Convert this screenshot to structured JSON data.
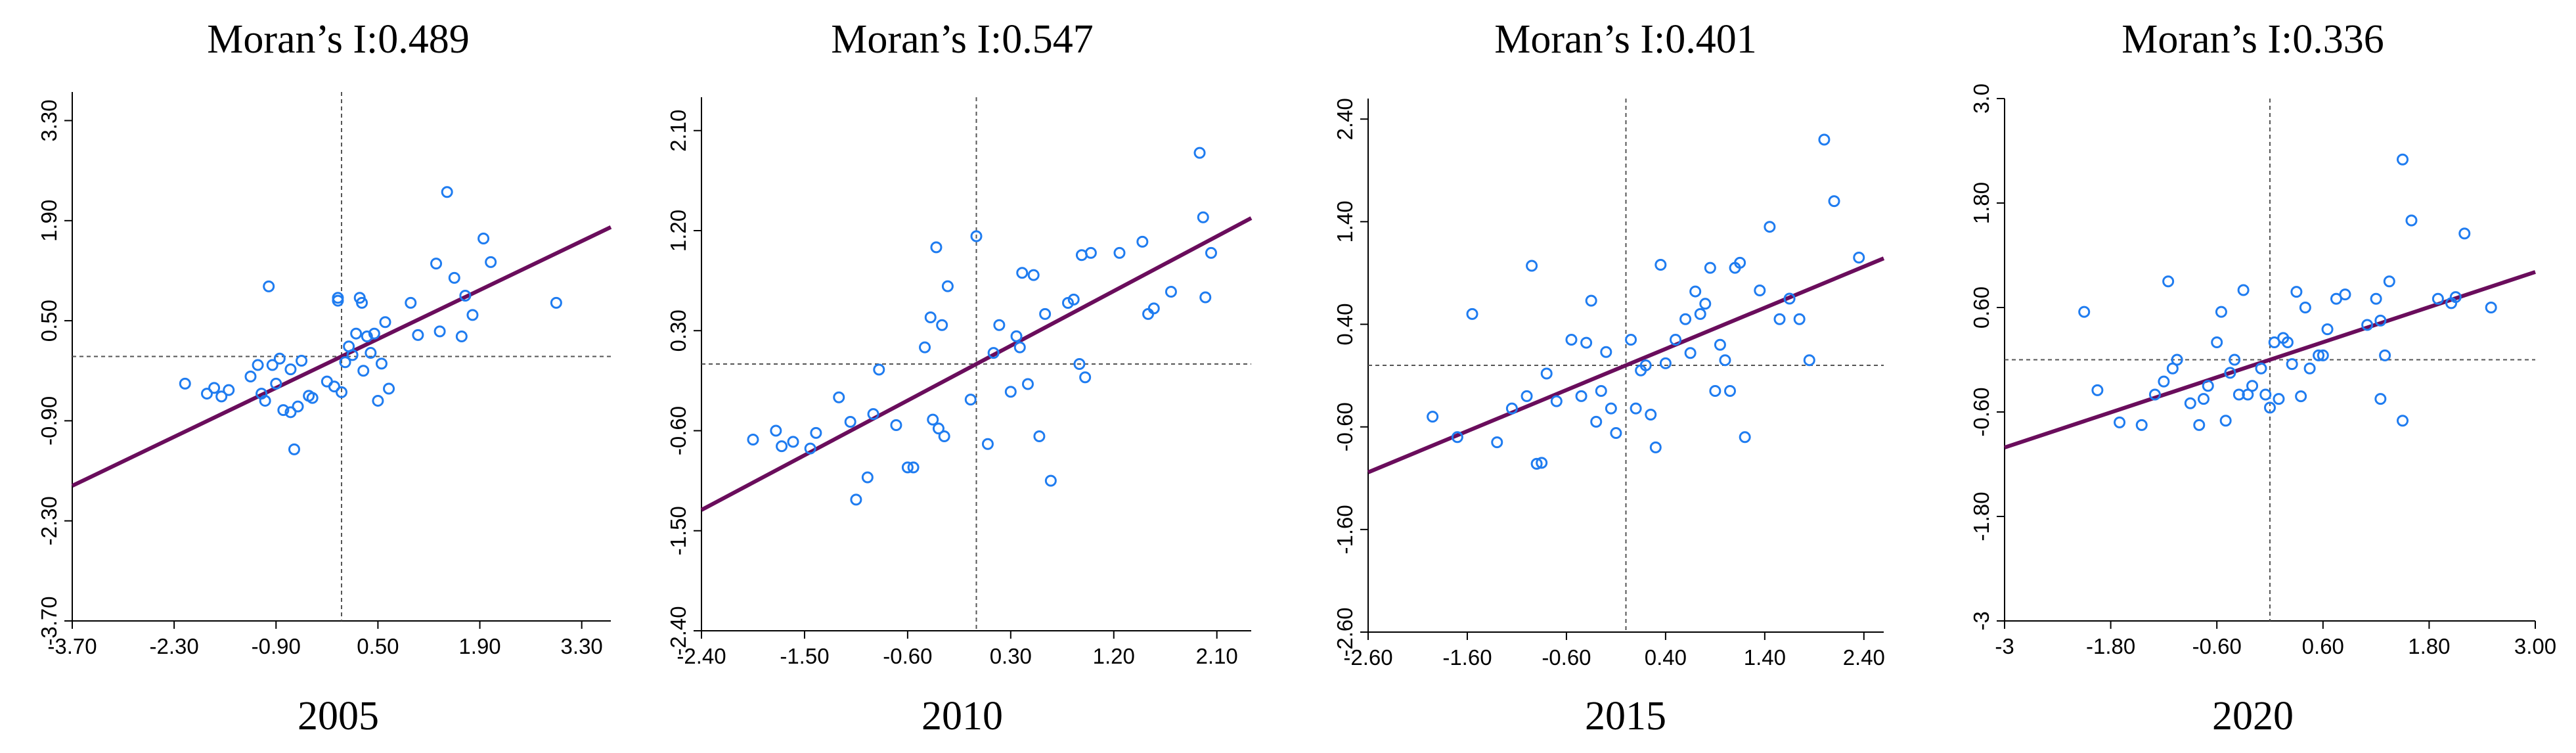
{
  "chart_data": [
    {
      "type": "scatter",
      "title": "Moran’s I:0.489",
      "year": "2005",
      "xlabel": "",
      "ylabel": "",
      "xlim": [
        -3.7,
        3.7
      ],
      "ylim": [
        -3.7,
        3.7
      ],
      "xticks": [
        "-3.70",
        "-2.30",
        "-0.90",
        "0.50",
        "1.90",
        "3.30"
      ],
      "yticks": [
        "-3.70",
        "-2.30",
        "-0.90",
        "0.50",
        "1.90",
        "3.30"
      ],
      "slope": 0.489,
      "points": [
        [
          -2.15,
          -0.38
        ],
        [
          -1.85,
          -0.52
        ],
        [
          -1.75,
          -0.44
        ],
        [
          -1.65,
          -0.56
        ],
        [
          -1.55,
          -0.47
        ],
        [
          -1.25,
          -0.28
        ],
        [
          -1.15,
          -0.12
        ],
        [
          -1.1,
          -0.52
        ],
        [
          -1.05,
          -0.62
        ],
        [
          -1.0,
          0.98
        ],
        [
          -0.95,
          -0.12
        ],
        [
          -0.9,
          -0.38
        ],
        [
          -0.85,
          -0.03
        ],
        [
          -0.8,
          -0.75
        ],
        [
          -0.7,
          -0.18
        ],
        [
          -0.7,
          -0.78
        ],
        [
          -0.65,
          -1.3
        ],
        [
          -0.6,
          -0.7
        ],
        [
          -0.55,
          -0.06
        ],
        [
          -0.45,
          -0.55
        ],
        [
          -0.4,
          -0.58
        ],
        [
          -0.2,
          -0.35
        ],
        [
          -0.1,
          -0.42
        ],
        [
          -0.05,
          0.82
        ],
        [
          -0.05,
          0.78
        ],
        [
          0.0,
          -0.5
        ],
        [
          0.05,
          -0.08
        ],
        [
          0.1,
          0.14
        ],
        [
          0.15,
          0.02
        ],
        [
          0.2,
          0.32
        ],
        [
          0.25,
          0.82
        ],
        [
          0.28,
          0.75
        ],
        [
          0.3,
          -0.2
        ],
        [
          0.35,
          0.28
        ],
        [
          0.4,
          0.05
        ],
        [
          0.45,
          0.32
        ],
        [
          0.5,
          -0.62
        ],
        [
          0.55,
          -0.1
        ],
        [
          0.6,
          0.48
        ],
        [
          0.65,
          -0.45
        ],
        [
          0.95,
          0.75
        ],
        [
          1.05,
          0.3
        ],
        [
          1.3,
          1.3
        ],
        [
          1.35,
          0.35
        ],
        [
          1.45,
          2.3
        ],
        [
          1.55,
          1.1
        ],
        [
          1.65,
          0.28
        ],
        [
          1.7,
          0.85
        ],
        [
          1.8,
          0.58
        ],
        [
          1.95,
          1.65
        ],
        [
          2.05,
          1.32
        ],
        [
          2.95,
          0.75
        ]
      ]
    },
    {
      "type": "scatter",
      "title": "Moran’s I:0.547",
      "year": "2010",
      "xlabel": "",
      "ylabel": "",
      "xlim": [
        -2.4,
        2.4
      ],
      "ylim": [
        -2.4,
        2.4
      ],
      "xticks": [
        "-2.40",
        "-1.50",
        "-0.60",
        "0.30",
        "1.20",
        "2.10"
      ],
      "yticks": [
        "-2.40",
        "-1.50",
        "-0.60",
        "0.30",
        "1.20",
        "2.10"
      ],
      "slope": 0.547,
      "points": [
        [
          -1.95,
          -0.68
        ],
        [
          -1.75,
          -0.6
        ],
        [
          -1.7,
          -0.74
        ],
        [
          -1.6,
          -0.7
        ],
        [
          -1.45,
          -0.76
        ],
        [
          -1.4,
          -0.62
        ],
        [
          -1.2,
          -0.3
        ],
        [
          -1.1,
          -0.52
        ],
        [
          -1.05,
          -1.22
        ],
        [
          -0.95,
          -1.02
        ],
        [
          -0.9,
          -0.45
        ],
        [
          -0.85,
          -0.05
        ],
        [
          -0.7,
          -0.55
        ],
        [
          -0.6,
          -0.93
        ],
        [
          -0.55,
          -0.93
        ],
        [
          -0.45,
          0.15
        ],
        [
          -0.4,
          0.42
        ],
        [
          -0.38,
          -0.5
        ],
        [
          -0.35,
          1.05
        ],
        [
          -0.33,
          -0.58
        ],
        [
          -0.3,
          0.35
        ],
        [
          -0.28,
          -0.65
        ],
        [
          -0.25,
          0.7
        ],
        [
          -0.05,
          -0.32
        ],
        [
          0.0,
          1.15
        ],
        [
          0.1,
          -0.72
        ],
        [
          0.15,
          0.1
        ],
        [
          0.2,
          0.35
        ],
        [
          0.3,
          -0.25
        ],
        [
          0.35,
          0.25
        ],
        [
          0.38,
          0.15
        ],
        [
          0.4,
          0.82
        ],
        [
          0.45,
          -0.18
        ],
        [
          0.5,
          0.8
        ],
        [
          0.55,
          -0.65
        ],
        [
          0.6,
          0.45
        ],
        [
          0.65,
          -1.05
        ],
        [
          0.8,
          0.55
        ],
        [
          0.85,
          0.58
        ],
        [
          0.9,
          0.0
        ],
        [
          0.92,
          0.98
        ],
        [
          0.95,
          -0.12
        ],
        [
          1.0,
          1.0
        ],
        [
          1.25,
          1.0
        ],
        [
          1.45,
          1.1
        ],
        [
          1.5,
          0.45
        ],
        [
          1.55,
          0.5
        ],
        [
          1.7,
          0.65
        ],
        [
          1.95,
          1.9
        ],
        [
          1.98,
          1.32
        ],
        [
          2.0,
          0.6
        ],
        [
          2.05,
          1.0
        ]
      ]
    },
    {
      "type": "scatter",
      "title": "Moran’s I:0.401",
      "year": "2015",
      "xlabel": "",
      "ylabel": "",
      "xlim": [
        -2.6,
        2.6
      ],
      "ylim": [
        -2.6,
        2.6
      ],
      "xticks": [
        "-2.60",
        "-1.60",
        "-0.60",
        "0.40",
        "1.40",
        "2.40"
      ],
      "yticks": [
        "-2.60",
        "-1.60",
        "-0.60",
        "0.40",
        "1.40",
        "2.40"
      ],
      "slope": 0.401,
      "points": [
        [
          -1.95,
          -0.5
        ],
        [
          -1.7,
          -0.7
        ],
        [
          -1.55,
          0.5
        ],
        [
          -1.3,
          -0.75
        ],
        [
          -1.15,
          -0.42
        ],
        [
          -1.0,
          -0.3
        ],
        [
          -0.95,
          0.97
        ],
        [
          -0.9,
          -0.96
        ],
        [
          -0.85,
          -0.95
        ],
        [
          -0.8,
          -0.08
        ],
        [
          -0.7,
          -0.35
        ],
        [
          -0.55,
          0.25
        ],
        [
          -0.45,
          -0.3
        ],
        [
          -0.4,
          0.22
        ],
        [
          -0.35,
          0.63
        ],
        [
          -0.3,
          -0.55
        ],
        [
          -0.25,
          -0.25
        ],
        [
          -0.2,
          0.13
        ],
        [
          -0.15,
          -0.42
        ],
        [
          -0.1,
          -0.66
        ],
        [
          0.05,
          0.25
        ],
        [
          0.1,
          -0.42
        ],
        [
          0.15,
          -0.05
        ],
        [
          0.2,
          0.0
        ],
        [
          0.25,
          -0.48
        ],
        [
          0.3,
          -0.8
        ],
        [
          0.35,
          0.98
        ],
        [
          0.4,
          0.02
        ],
        [
          0.5,
          0.25
        ],
        [
          0.6,
          0.45
        ],
        [
          0.65,
          0.12
        ],
        [
          0.7,
          0.72
        ],
        [
          0.75,
          0.5
        ],
        [
          0.8,
          0.6
        ],
        [
          0.85,
          0.95
        ],
        [
          0.9,
          -0.25
        ],
        [
          0.95,
          0.2
        ],
        [
          1.0,
          0.05
        ],
        [
          1.05,
          -0.25
        ],
        [
          1.1,
          0.95
        ],
        [
          1.15,
          1.0
        ],
        [
          1.2,
          -0.7
        ],
        [
          1.35,
          0.73
        ],
        [
          1.45,
          1.35
        ],
        [
          1.55,
          0.45
        ],
        [
          1.65,
          0.65
        ],
        [
          1.75,
          0.45
        ],
        [
          1.85,
          0.05
        ],
        [
          2.0,
          2.2
        ],
        [
          2.1,
          1.6
        ],
        [
          2.35,
          1.05
        ]
      ]
    },
    {
      "type": "scatter",
      "title": "Moran’s I:0.336",
      "year": "2020",
      "xlabel": "",
      "ylabel": "",
      "xlim": [
        -3.0,
        3.0
      ],
      "ylim": [
        -3.0,
        3.0
      ],
      "xticks": [
        "-3",
        "-1.80",
        "-0.60",
        "0.60",
        "1.80",
        "3.00"
      ],
      "yticks": [
        "-3",
        "-1.80",
        "-0.60",
        "0.60",
        "1.80",
        "3.0"
      ],
      "slope": 0.336,
      "points": [
        [
          -2.1,
          0.55
        ],
        [
          -1.95,
          -0.35
        ],
        [
          -1.7,
          -0.72
        ],
        [
          -1.45,
          -0.75
        ],
        [
          -1.3,
          -0.4
        ],
        [
          -1.2,
          -0.25
        ],
        [
          -1.15,
          0.9
        ],
        [
          -1.1,
          -0.1
        ],
        [
          -1.05,
          0.0
        ],
        [
          -0.9,
          -0.5
        ],
        [
          -0.8,
          -0.75
        ],
        [
          -0.75,
          -0.45
        ],
        [
          -0.7,
          -0.3
        ],
        [
          -0.6,
          0.2
        ],
        [
          -0.55,
          0.55
        ],
        [
          -0.5,
          -0.7
        ],
        [
          -0.45,
          -0.15
        ],
        [
          -0.4,
          0.0
        ],
        [
          -0.35,
          -0.4
        ],
        [
          -0.3,
          0.8
        ],
        [
          -0.25,
          -0.4
        ],
        [
          -0.2,
          -0.3
        ],
        [
          -0.1,
          -0.1
        ],
        [
          -0.05,
          -0.4
        ],
        [
          0.0,
          -0.55
        ],
        [
          0.05,
          0.2
        ],
        [
          0.1,
          -0.45
        ],
        [
          0.15,
          0.25
        ],
        [
          0.2,
          0.2
        ],
        [
          0.25,
          -0.05
        ],
        [
          0.3,
          0.78
        ],
        [
          0.35,
          -0.42
        ],
        [
          0.4,
          0.6
        ],
        [
          0.45,
          -0.1
        ],
        [
          0.55,
          0.05
        ],
        [
          0.6,
          0.05
        ],
        [
          0.65,
          0.35
        ],
        [
          0.75,
          0.7
        ],
        [
          0.85,
          0.75
        ],
        [
          1.1,
          0.4
        ],
        [
          1.2,
          0.7
        ],
        [
          1.25,
          -0.45
        ],
        [
          1.25,
          0.45
        ],
        [
          1.3,
          0.05
        ],
        [
          1.35,
          0.9
        ],
        [
          1.5,
          -0.7
        ],
        [
          1.5,
          2.3
        ],
        [
          1.6,
          1.6
        ],
        [
          1.9,
          0.7
        ],
        [
          2.05,
          0.65
        ],
        [
          2.1,
          0.72
        ],
        [
          2.2,
          1.45
        ],
        [
          2.5,
          0.6
        ]
      ]
    }
  ],
  "colors": {
    "point": "#1f7cf0",
    "fit_line": "#6a0d5c",
    "axis": "#000000",
    "guide": "#555555"
  }
}
